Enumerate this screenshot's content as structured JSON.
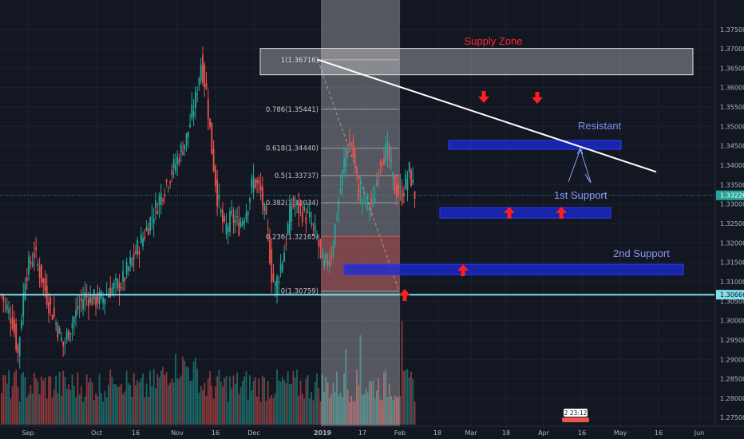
{
  "chart_data": {
    "type": "candlestick",
    "title": "",
    "x_ticks": [
      "Sep",
      "Oct",
      "16",
      "Nov",
      "16",
      "Dec",
      "2019",
      "17",
      "Feb",
      "18",
      "Mar",
      "18",
      "Apr",
      "16",
      "May",
      "16",
      "Jun"
    ],
    "y_ticks": [
      "1.37500",
      "1.37000",
      "1.36500",
      "1.36000",
      "1.35500",
      "1.35000",
      "1.34500",
      "1.34000",
      "1.33500",
      "1.33000",
      "1.32500",
      "1.32000",
      "1.31500",
      "1.31000",
      "1.30500",
      "1.30000",
      "1.29500",
      "1.29000",
      "1.28500",
      "1.28000",
      "1.27500"
    ],
    "ylim": [
      1.2732,
      1.3768
    ],
    "last_price": "1.33226",
    "horizontal_level": "1.30666",
    "countdown_label": "2 23:12",
    "fibonacci": [
      {
        "label": "1(1.36716)",
        "value": 1.36716
      },
      {
        "label": "0.786(1.35441)",
        "value": 1.35441
      },
      {
        "label": "0.618(1.34440)",
        "value": 1.3444
      },
      {
        "label": "0.5(1.33737)",
        "value": 1.33737
      },
      {
        "label": "0.382(1.33034)",
        "value": 1.33034
      },
      {
        "label": "0.236(1.32165)",
        "value": 1.32165
      },
      {
        "label": "0(1.30759)",
        "value": 1.30759
      }
    ],
    "zones": [
      {
        "label": "Supply Zone",
        "low": 1.3633,
        "high": 1.3701,
        "color": "#ff3030"
      },
      {
        "label": "Resistant",
        "low": 1.3441,
        "high": 1.3464,
        "color": "#6d77d6"
      },
      {
        "label": "1st Support",
        "low": 1.3264,
        "high": 1.3291,
        "color": "#7d87e0"
      },
      {
        "label": "2nd Support",
        "low": 1.3118,
        "high": 1.3145,
        "color": "#7d87e0"
      }
    ],
    "trendline": {
      "from": {
        "x": "Dec 31",
        "y": 1.3672
      },
      "to": {
        "x": "Apr 27",
        "y": 1.3383
      }
    },
    "colors": {
      "up": "#26a69a",
      "down": "#ef5350",
      "background": "#131722",
      "trendline": "#ffffff",
      "zone": "#1b2ad8",
      "arrow": "#ff1e1e",
      "level": "#80deea"
    },
    "series": [
      {
        "name": "",
        "type": "candles",
        "close_path": [
          [
            0,
            1.3065
          ],
          [
            6,
            1.3
          ],
          [
            9,
            1.2915
          ],
          [
            13,
            1.3115
          ],
          [
            18,
            1.3175
          ],
          [
            22,
            1.311
          ],
          [
            26,
            1.3045
          ],
          [
            30,
            1.2995
          ],
          [
            34,
            1.2935
          ],
          [
            38,
            1.2985
          ],
          [
            42,
            1.303
          ],
          [
            46,
            1.3065
          ],
          [
            50,
            1.3055
          ],
          [
            55,
            1.3055
          ],
          [
            60,
            1.308
          ],
          [
            66,
            1.3095
          ],
          [
            72,
            1.3155
          ],
          [
            78,
            1.3215
          ],
          [
            84,
            1.328
          ],
          [
            90,
            1.3345
          ],
          [
            96,
            1.3405
          ],
          [
            102,
            1.347
          ],
          [
            107,
            1.357
          ],
          [
            110,
            1.3665
          ],
          [
            113,
            1.359
          ],
          [
            116,
            1.344
          ],
          [
            119,
            1.332
          ],
          [
            123,
            1.323
          ],
          [
            127,
            1.3265
          ],
          [
            131,
            1.3245
          ],
          [
            135,
            1.3285
          ],
          [
            139,
            1.3365
          ],
          [
            143,
            1.333
          ],
          [
            147,
            1.322
          ],
          [
            149,
            1.312
          ],
          [
            151,
            1.3085
          ],
          [
            156,
            1.318
          ],
          [
            160,
            1.33
          ],
          [
            165,
            1.3285
          ],
          [
            170,
            1.326
          ],
          [
            174,
            1.321
          ],
          [
            178,
            1.314
          ],
          [
            182,
            1.3175
          ],
          [
            186,
            1.331
          ],
          [
            190,
            1.344
          ],
          [
            193,
            1.3455
          ],
          [
            197,
            1.333
          ],
          [
            201,
            1.3305
          ],
          [
            205,
            1.33
          ],
          [
            209,
            1.342
          ],
          [
            213,
            1.3435
          ],
          [
            217,
            1.334
          ],
          [
            221,
            1.3325
          ],
          [
            225,
            1.3385
          ],
          [
            228,
            1.3325
          ]
        ]
      },
      {
        "name": "",
        "type": "volume",
        "max_bar_index": 221
      }
    ]
  }
}
